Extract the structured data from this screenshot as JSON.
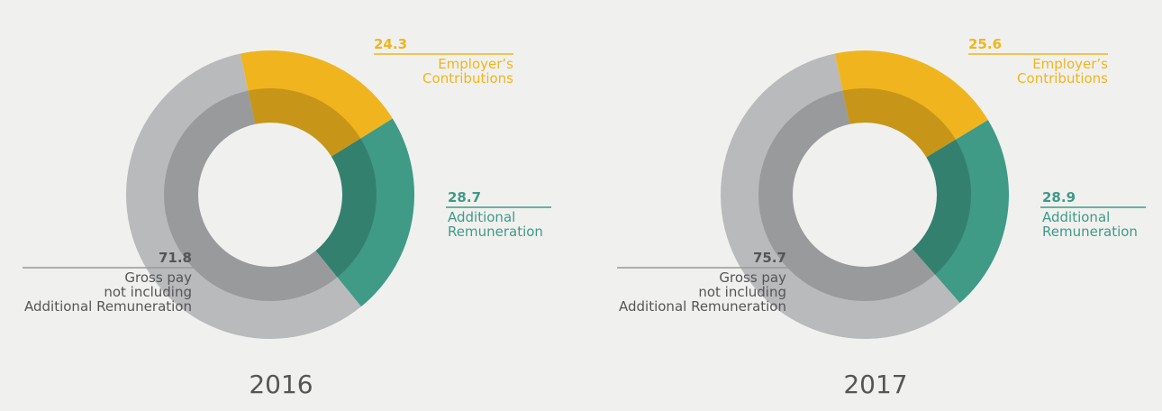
{
  "chart_data": [
    {
      "type": "pie",
      "title": "2016",
      "categories": [
        "Employer’s\nContributions",
        "Additional\nRemuneration",
        "Gross pay\nnot including\nAdditional Remuneration"
      ],
      "values": [
        24.3,
        28.7,
        71.8
      ],
      "colors": [
        "#f0b51e",
        "#3f9a86",
        "#b9babc"
      ]
    },
    {
      "type": "pie",
      "title": "2017",
      "categories": [
        "Employer’s\nContributions",
        "Additional\nRemuneration",
        "Gross pay\nnot including\nAdditional Remuneration"
      ],
      "values": [
        25.6,
        28.9,
        75.7
      ],
      "colors": [
        "#f0b51e",
        "#3f9a86",
        "#b9babc"
      ]
    }
  ]
}
